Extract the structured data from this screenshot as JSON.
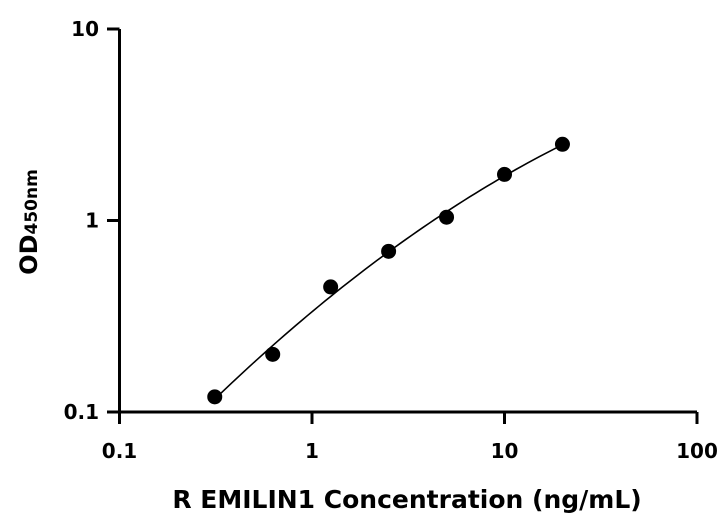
{
  "chart_data": {
    "type": "scatter",
    "xlabel": "R EMILIN1 Concentration (ng/mL)",
    "ylabel": "OD",
    "ylabel_subscript": "450nm",
    "xscale": "log",
    "yscale": "log",
    "xlim": [
      0.1,
      100
    ],
    "ylim": [
      0.1,
      10
    ],
    "xticks": [
      "0.1",
      "1",
      "10",
      "100"
    ],
    "yticks": [
      "0.1",
      "1",
      "10"
    ],
    "grid": false,
    "series": [
      {
        "x": [
          0.3125,
          0.625,
          1.25,
          2.5,
          5,
          10,
          20
        ],
        "y": [
          0.12,
          0.2,
          0.45,
          0.69,
          1.04,
          1.74,
          2.5
        ],
        "marker": "circle",
        "fit_curve": true
      }
    ]
  }
}
